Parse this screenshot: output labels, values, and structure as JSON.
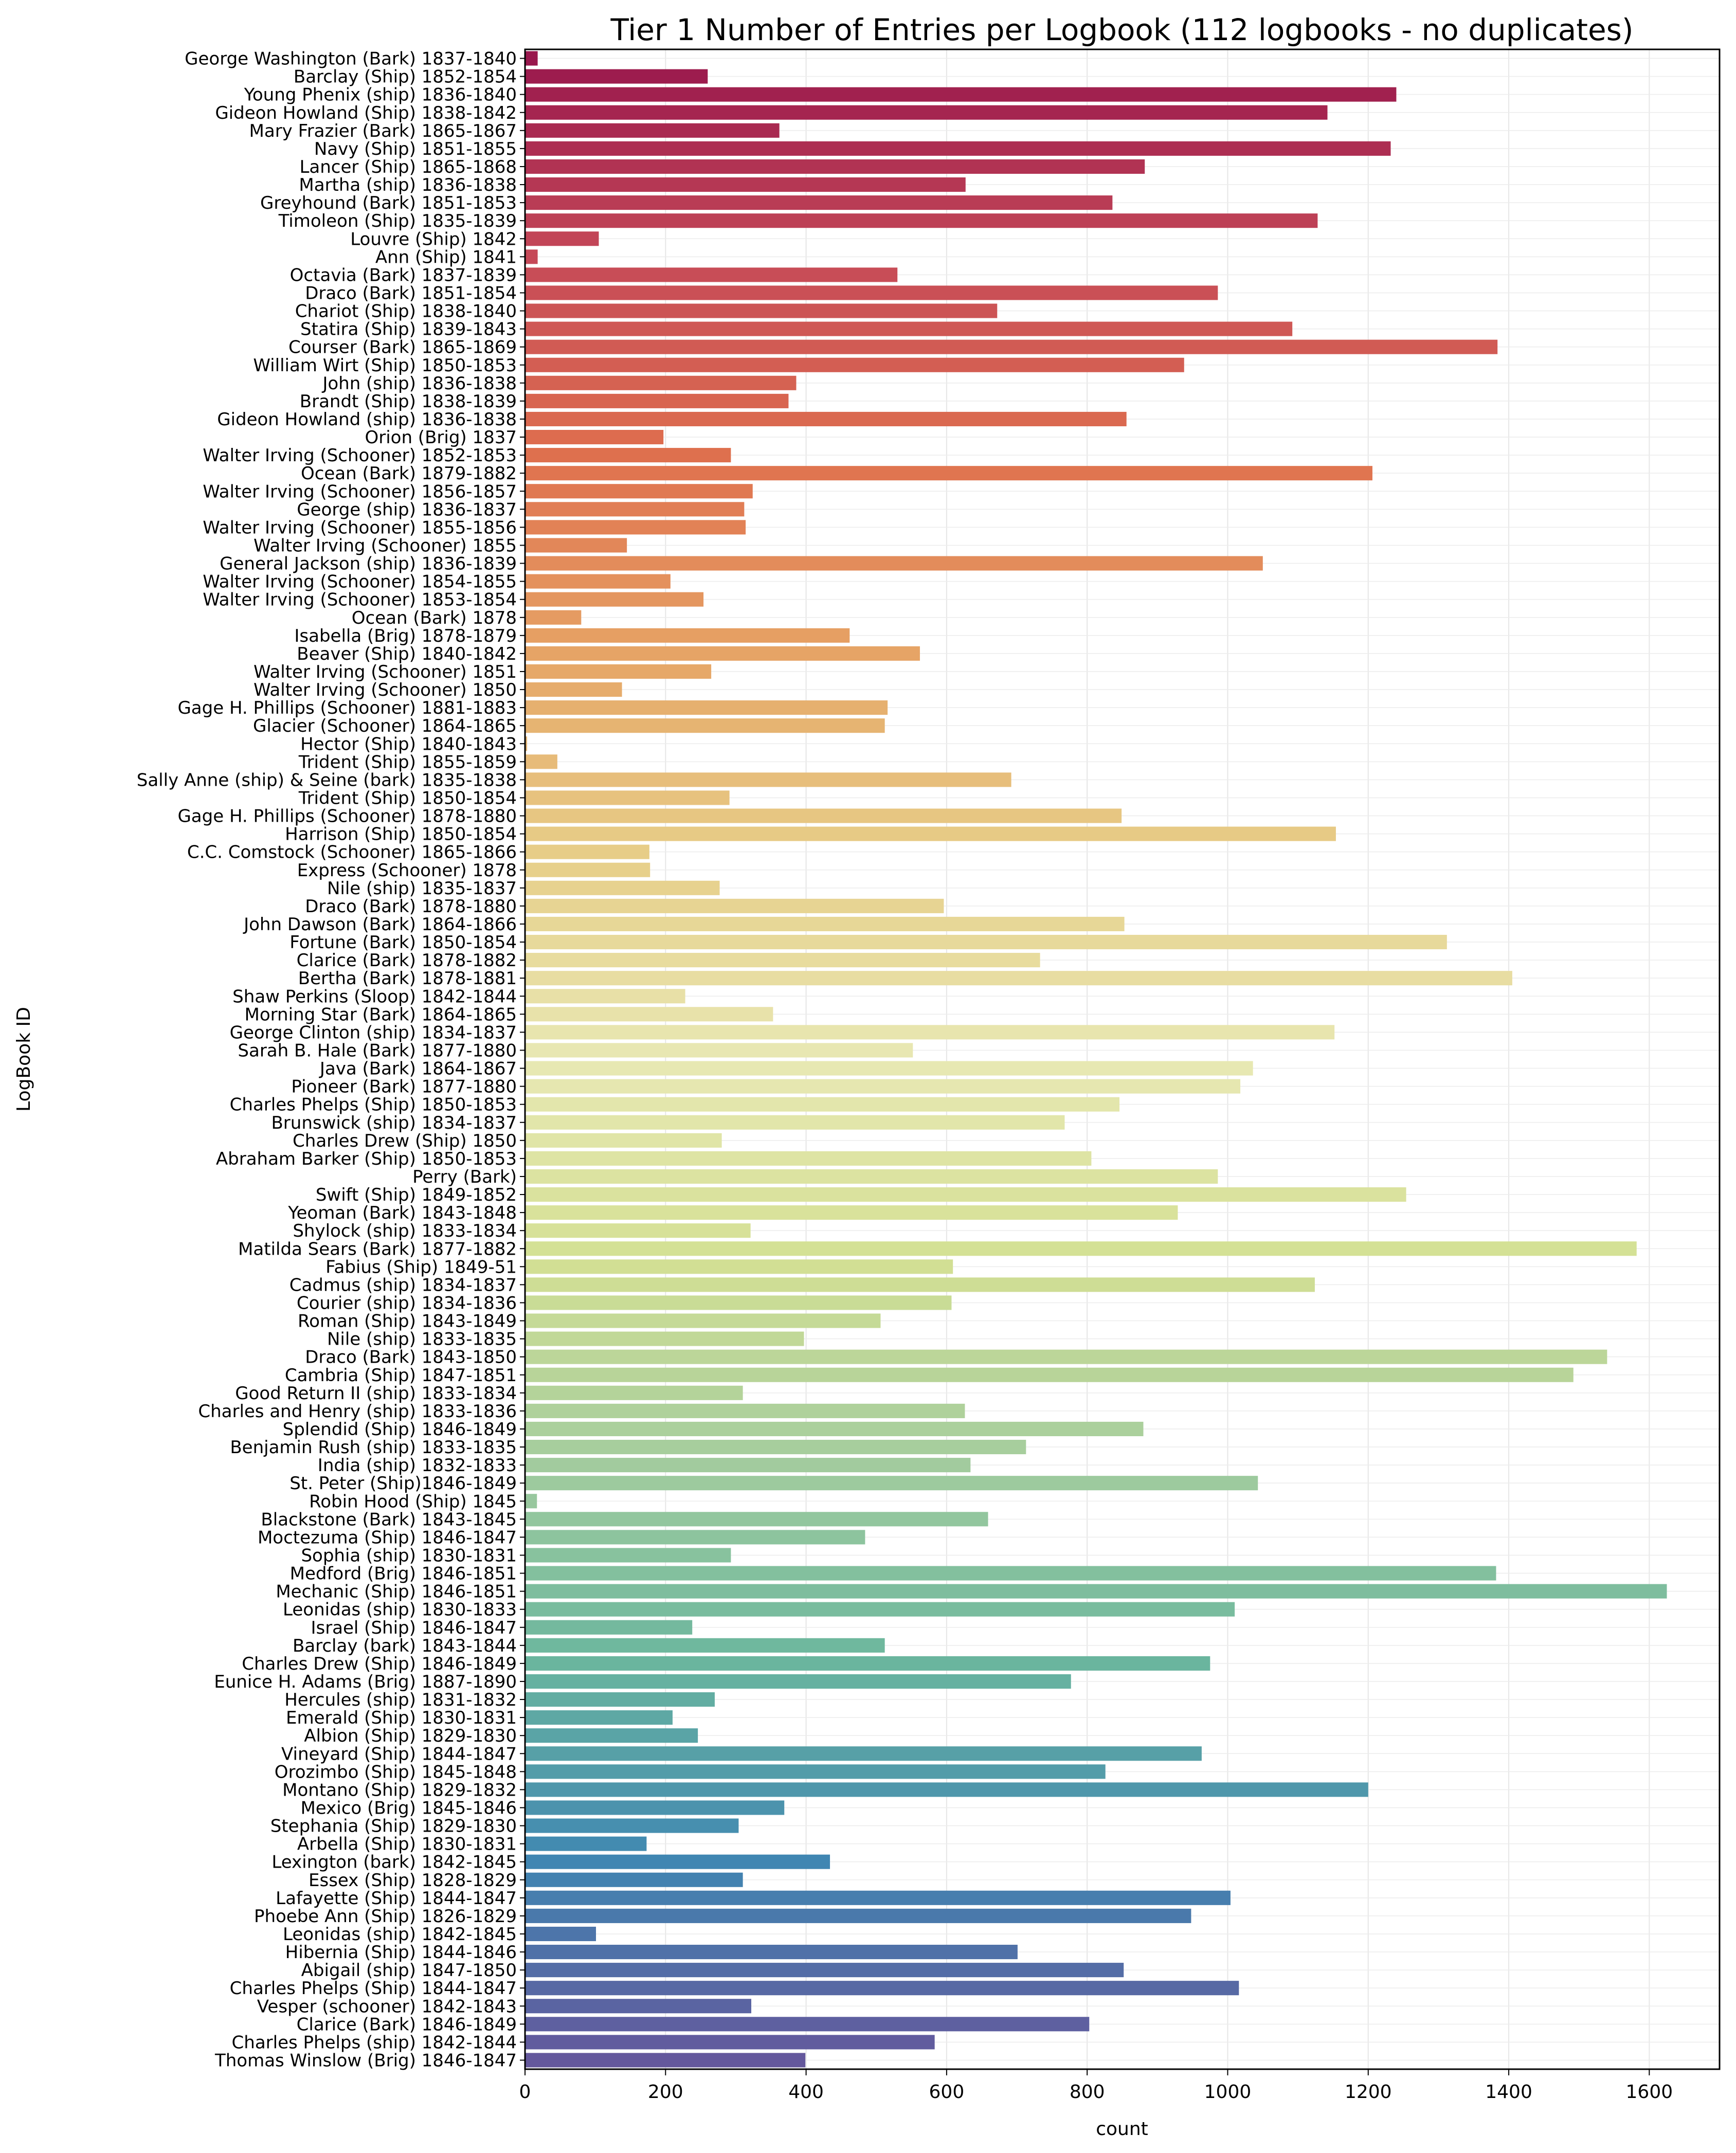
{
  "chart_data": {
    "type": "bar",
    "orientation": "horizontal",
    "title": "Tier 1 Number of Entries per Logbook (112 logbooks - no duplicates)",
    "xlabel": "count",
    "ylabel": "LogBook ID",
    "xlim": [
      0,
      1700
    ],
    "xticks": [
      0,
      200,
      400,
      600,
      800,
      1000,
      1200,
      1400,
      1600
    ],
    "grid": true,
    "palette": "Spectral",
    "categories": [
      "George Washington (Bark) 1837-1840",
      "Barclay (Ship) 1852-1854",
      "Young Phenix (ship) 1836-1840",
      "Gideon Howland (Ship) 1838-1842",
      "Mary Frazier (Bark) 1865-1867",
      "Navy (Ship) 1851-1855",
      "Lancer (Ship) 1865-1868",
      "Martha (ship) 1836-1838",
      "Greyhound (Bark) 1851-1853",
      "Timoleon (Ship) 1835-1839",
      "Louvre (Ship) 1842",
      "Ann (Ship) 1841",
      "Octavia (Bark) 1837-1839",
      "Draco (Bark) 1851-1854",
      "Chariot (Ship) 1838-1840",
      "Statira (Ship) 1839-1843",
      "Courser (Bark) 1865-1869",
      "William Wirt (Ship) 1850-1853",
      "John (ship) 1836-1838",
      "Brandt (Ship) 1838-1839",
      "Gideon Howland (ship) 1836-1838",
      "Orion (Brig) 1837",
      "Walter Irving (Schooner) 1852-1853",
      "Ocean (Bark) 1879-1882",
      "Walter Irving (Schooner) 1856-1857",
      "George (ship) 1836-1837",
      "Walter Irving (Schooner) 1855-1856",
      "Walter Irving (Schooner) 1855",
      "General Jackson (ship) 1836-1839",
      "Walter Irving (Schooner) 1854-1855",
      "Walter Irving (Schooner) 1853-1854",
      "Ocean (Bark) 1878",
      "Isabella (Brig) 1878-1879",
      "Beaver (Ship) 1840-1842",
      "Walter Irving (Schooner) 1851",
      "Walter Irving (Schooner) 1850",
      "Gage H. Phillips (Schooner) 1881-1883",
      "Glacier (Schooner) 1864-1865",
      "Hector (Ship) 1840-1843",
      "Trident (Ship) 1855-1859",
      "Sally Anne (ship) & Seine (bark) 1835-1838",
      "Trident (Ship) 1850-1854",
      "Gage H. Phillips (Schooner) 1878-1880",
      "Harrison (Ship) 1850-1854",
      "C.C. Comstock (Schooner) 1865-1866",
      "Express (Schooner) 1878",
      "Nile (ship) 1835-1837",
      "Draco (Bark) 1878-1880",
      "John Dawson (Bark) 1864-1866",
      "Fortune (Bark) 1850-1854",
      "Clarice (Bark) 1878-1882",
      "Bertha (Bark) 1878-1881",
      "Shaw Perkins (Sloop) 1842-1844",
      "Morning Star (Bark) 1864-1865",
      "George Clinton (ship) 1834-1837",
      "Sarah B. Hale (Bark) 1877-1880",
      "Java (Bark) 1864-1867",
      "Pioneer (Bark) 1877-1880",
      "Charles Phelps (Ship) 1850-1853",
      "Brunswick (ship) 1834-1837",
      "Charles Drew (Ship) 1850",
      "Abraham Barker (Ship) 1850-1853",
      "Perry (Bark)",
      "Swift (Ship) 1849-1852",
      "Yeoman (Bark) 1843-1848",
      "Shylock (ship) 1833-1834",
      "Matilda Sears (Bark) 1877-1882",
      "Fabius (Ship) 1849-51",
      "Cadmus (ship) 1834-1837",
      "Courier (ship) 1834-1836",
      "Roman (Ship) 1843-1849",
      "Nile (ship) 1833-1835",
      "Draco (Bark) 1843-1850",
      "Cambria (Ship) 1847-1851",
      "Good Return II (ship) 1833-1834",
      "Charles and Henry (ship) 1833-1836",
      "Splendid (Ship) 1846-1849",
      "Benjamin Rush (ship) 1833-1835",
      "India (ship) 1832-1833",
      "St. Peter (Ship)1846-1849",
      "Robin Hood (Ship) 1845",
      "Blackstone (Bark) 1843-1845",
      "Moctezuma (Ship) 1846-1847",
      "Sophia (ship) 1830-1831",
      "Medford (Brig) 1846-1851",
      "Mechanic (Ship) 1846-1851",
      "Leonidas (ship) 1830-1833",
      "Israel (Ship) 1846-1847",
      "Barclay (bark) 1843-1844",
      "Charles Drew (Ship) 1846-1849",
      "Eunice H. Adams (Brig) 1887-1890",
      "Hercules (ship) 1831-1832",
      "Emerald (Ship) 1830-1831",
      "Albion (Ship) 1829-1830",
      "Vineyard (Ship) 1844-1847",
      "Orozimbo (Ship) 1845-1848",
      "Montano (Ship) 1829-1832",
      "Mexico (Brig) 1845-1846",
      "Stephania (Ship) 1829-1830",
      "Arbella (Ship) 1830-1831",
      "Lexington (bark) 1842-1845",
      "Essex (Ship) 1828-1829",
      "Lafayette (Ship) 1844-1847",
      "Phoebe Ann (Ship) 1826-1829",
      "Leonidas (ship) 1842-1845",
      "Hibernia (Ship) 1844-1846",
      "Abigail (ship) 1847-1850",
      "Charles Phelps (Ship) 1844-1847",
      "Vesper (schooner) 1842-1843",
      "Clarice (Bark) 1846-1849",
      "Charles Phelps (ship) 1842-1844",
      "Thomas Winslow (Brig) 1846-1847"
    ],
    "values": [
      18,
      260,
      1240,
      1142,
      362,
      1232,
      882,
      627,
      836,
      1128,
      105,
      18,
      530,
      986,
      672,
      1092,
      1384,
      938,
      386,
      375,
      856,
      197,
      293,
      1206,
      324,
      312,
      314,
      145,
      1050,
      207,
      254,
      80,
      462,
      562,
      265,
      138,
      516,
      512,
      3,
      46,
      692,
      291,
      849,
      1154,
      177,
      178,
      277,
      596,
      853,
      1312,
      733,
      1405,
      228,
      353,
      1152,
      552,
      1036,
      1018,
      846,
      768,
      280,
      806,
      986,
      1254,
      929,
      321,
      1582,
      609,
      1124,
      607,
      506,
      397,
      1540,
      1492,
      310,
      626,
      880,
      713,
      634,
      1043,
      17,
      659,
      484,
      293,
      1382,
      1625,
      1010,
      238,
      512,
      975,
      777,
      270,
      210,
      246,
      963,
      826,
      1200,
      369,
      304,
      173,
      434,
      310,
      1004,
      948,
      101,
      701,
      852,
      1016,
      322,
      803,
      583,
      399
    ]
  }
}
